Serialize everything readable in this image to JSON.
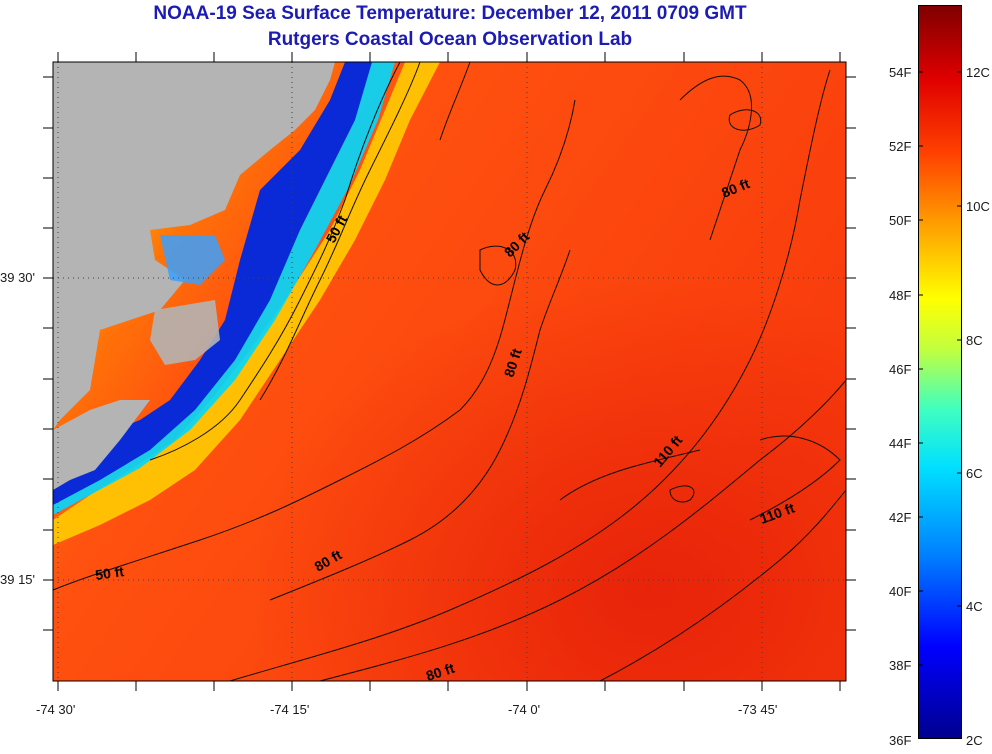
{
  "title": "NOAA-19 Sea Surface Temperature:  December 12, 2011 0709 GMT",
  "subtitle": "Rutgers Coastal Ocean Observation Lab",
  "axes": {
    "lat_labels": [
      "39 30'",
      "39 15'"
    ],
    "lon_labels": [
      "-74 30'",
      "-74 15'",
      "-74 0'",
      "-73 45'"
    ]
  },
  "colorbar": {
    "fahrenheit": [
      "54F",
      "52F",
      "50F",
      "48F",
      "46F",
      "44F",
      "42F",
      "40F",
      "38F",
      "36F"
    ],
    "celsius": [
      "12C",
      "10C",
      "8C",
      "6C",
      "4C",
      "2C"
    ],
    "range_f": [
      36,
      55.5
    ],
    "range_c": [
      2,
      13
    ]
  },
  "contour_labels": {
    "a": "50 ft",
    "b": "80 ft",
    "c": "80 ft",
    "d": "80 ft",
    "e": "80 ft",
    "f": "80 ft",
    "g": "110 ft",
    "h": "110 ft",
    "i": "50 ft"
  },
  "colors": {
    "land": "#b4b4b4",
    "title": "#1c1cb4",
    "warm_ocean": "#ff3a10",
    "cold_coast": "#0a2ad8"
  }
}
